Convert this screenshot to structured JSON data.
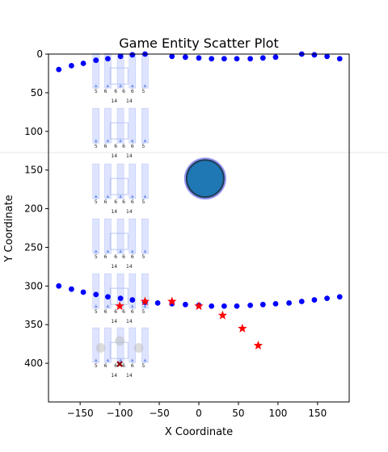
{
  "chart_data": {
    "type": "scatter",
    "title": "Game Entity Scatter Plot",
    "xlabel": "X Coordinate",
    "ylabel": "Y Coordinate",
    "xlim": [
      -190,
      190
    ],
    "ylim": [
      450,
      0
    ],
    "y_inverted": true,
    "grid": false,
    "x_ticks": [
      -150,
      -100,
      -50,
      0,
      50,
      100,
      150
    ],
    "y_ticks": [
      0,
      50,
      100,
      150,
      200,
      250,
      300,
      350,
      400
    ],
    "sprite_labels": [
      "5",
      "6",
      "6",
      "6",
      "6",
      "5",
      "14",
      "14"
    ],
    "series": [
      {
        "marker": "circle",
        "color": "#0000ff",
        "points": [
          [
            -177,
            20
          ],
          [
            -161,
            15
          ],
          [
            -146,
            12
          ],
          [
            -130,
            8
          ],
          [
            -115,
            6
          ],
          [
            -99,
            3
          ],
          [
            -84,
            1
          ],
          [
            -68,
            0
          ],
          [
            -34,
            3
          ],
          [
            -17,
            4
          ],
          [
            0,
            5
          ],
          [
            16,
            6
          ],
          [
            32,
            6
          ],
          [
            48,
            6
          ],
          [
            65,
            6
          ],
          [
            81,
            5
          ],
          [
            97,
            4
          ],
          [
            130,
            0
          ],
          [
            146,
            1
          ],
          [
            162,
            3
          ],
          [
            178,
            6
          ]
        ]
      },
      {
        "marker": "circle",
        "color": "#0000ff",
        "points": [
          [
            -177,
            300
          ],
          [
            -161,
            304
          ],
          [
            -146,
            308
          ],
          [
            -130,
            311
          ],
          [
            -115,
            314
          ],
          [
            -99,
            316
          ],
          [
            -84,
            318
          ],
          [
            -68,
            321
          ],
          [
            -52,
            322
          ],
          [
            -34,
            323
          ],
          [
            -17,
            324
          ],
          [
            0,
            325
          ],
          [
            16,
            326
          ],
          [
            32,
            326
          ],
          [
            48,
            326
          ],
          [
            65,
            325
          ],
          [
            81,
            324
          ],
          [
            97,
            323
          ],
          [
            114,
            322
          ],
          [
            130,
            320
          ],
          [
            146,
            318
          ],
          [
            162,
            316
          ],
          [
            178,
            314
          ]
        ]
      },
      {
        "marker": "star",
        "color": "#ff0000",
        "points": [
          [
            -100,
            326
          ],
          [
            -68,
            320
          ],
          [
            -34,
            320
          ],
          [
            0,
            326
          ],
          [
            30,
            338
          ],
          [
            55,
            355
          ],
          [
            75,
            377
          ]
        ]
      },
      {
        "marker": "x",
        "color": "#8b0000",
        "points": [
          [
            -100,
            401
          ]
        ]
      },
      {
        "marker": "circle-faded",
        "color": "#bbbbbb",
        "points": [
          [
            -124,
            380
          ],
          [
            -100,
            371
          ],
          [
            -76,
            380
          ]
        ]
      },
      {
        "marker": "big-circle",
        "color": "#1f77b4",
        "edge_color": "#8888ee",
        "points": [
          [
            8,
            161
          ]
        ]
      }
    ],
    "sprite_columns_x": [
      -130,
      -115,
      -99,
      -84,
      -68
    ],
    "sprite_rows_y": [
      -3,
      68,
      140,
      211,
      282,
      352
    ]
  }
}
